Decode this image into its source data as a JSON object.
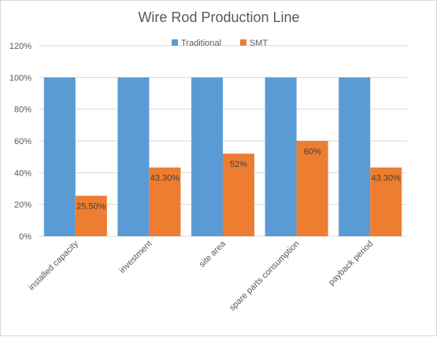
{
  "chart_data": {
    "type": "bar",
    "title": "Wire Rod Production Line",
    "categories": [
      "installed capacity",
      "investment",
      "site area",
      "spare parts consumption",
      "payback period"
    ],
    "series": [
      {
        "name": "Traditional",
        "values": [
          100,
          100,
          100,
          100,
          100
        ],
        "color": "#5B9BD5",
        "data_labels": []
      },
      {
        "name": "SMT",
        "values": [
          25.5,
          43.3,
          52,
          60,
          43.3
        ],
        "color": "#ED7D31",
        "data_labels": [
          "25.50%",
          "43.30%",
          "52%",
          "60%",
          "43.30%"
        ]
      }
    ],
    "yticks": [
      "0%",
      "20%",
      "40%",
      "60%",
      "80%",
      "100%",
      "120%"
    ],
    "ylim": [
      0,
      120
    ],
    "grid": true,
    "legend": "top"
  }
}
